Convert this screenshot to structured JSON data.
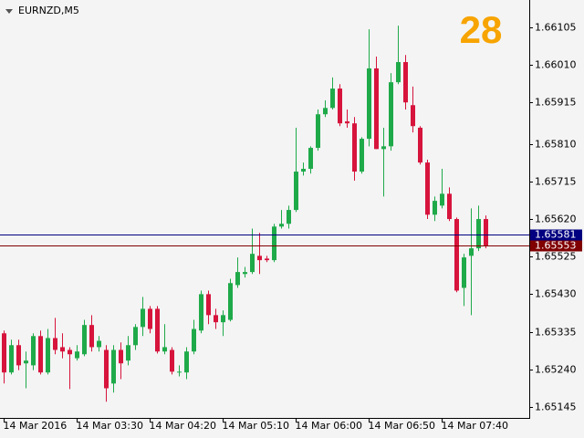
{
  "chart_data": {
    "type": "candlestick",
    "title": "EURNZD,M5",
    "annotation": "28",
    "categories": [
      "14 Mar 2016",
      null,
      null,
      null,
      null,
      null,
      null,
      null,
      null,
      null,
      "14 Mar 03:30",
      null,
      null,
      null,
      null,
      null,
      null,
      null,
      null,
      null,
      "14 Mar 04:20",
      null,
      null,
      null,
      null,
      null,
      null,
      null,
      null,
      null,
      "14 Mar 05:10",
      null,
      null,
      null,
      null,
      null,
      null,
      null,
      null,
      null,
      "14 Mar 06:00",
      null,
      null,
      null,
      null,
      null,
      null,
      null,
      null,
      null,
      "14 Mar 06:50",
      null,
      null,
      null,
      null,
      null,
      null,
      null,
      null,
      null,
      "14 Mar 07:40",
      null,
      null,
      null,
      null,
      null,
      null
    ],
    "open": [
      1.65331,
      1.65232,
      1.65301,
      1.65255,
      1.6525,
      1.65324,
      1.65232,
      1.65319,
      1.65296,
      1.65289,
      1.65268,
      1.65278,
      1.65352,
      1.65296,
      1.65289,
      1.65204,
      1.65289,
      1.65262,
      1.65301,
      1.65347,
      1.65393,
      1.65393,
      1.65285,
      1.65289,
      1.65232,
      1.65232,
      1.65285,
      1.65338,
      1.6543,
      1.65377,
      1.65359,
      1.65365,
      1.65453,
      1.65481,
      1.65486,
      1.65527,
      1.6552,
      1.65516,
      1.65601,
      1.65608,
      1.65643,
      1.6574,
      1.65747,
      1.658,
      1.65885,
      1.65901,
      1.6595,
      1.65867,
      1.65862,
      1.6574,
      1.65823,
      1.66001,
      1.65797,
      1.65804,
      1.65966,
      1.66017,
      1.65908,
      1.65851,
      1.65763,
      1.65631,
      1.65654,
      1.65684,
      1.6562,
      1.65446,
      1.65527,
      1.65546,
      1.6562
    ],
    "high": [
      1.65338,
      1.65315,
      1.65315,
      1.65285,
      1.65331,
      1.65338,
      1.65342,
      1.6537,
      1.65331,
      1.65296,
      1.65301,
      1.65365,
      1.65377,
      1.65324,
      1.65301,
      1.65301,
      1.65308,
      1.65324,
      1.65354,
      1.65423,
      1.654,
      1.654,
      1.65354,
      1.65296,
      1.6525,
      1.65296,
      1.65365,
      1.65439,
      1.65439,
      1.65393,
      1.65389,
      1.65469,
      1.65523,
      1.65499,
      1.65596,
      1.65585,
      1.65527,
      1.65608,
      1.65643,
      1.65654,
      1.65851,
      1.65763,
      1.65804,
      1.65897,
      1.6592,
      1.65978,
      1.65961,
      1.65897,
      1.65878,
      1.65827,
      1.661,
      1.66031,
      1.65851,
      1.65989,
      1.66109,
      1.66035,
      1.65955,
      1.65855,
      1.6577,
      1.65677,
      1.65747,
      1.657,
      1.65624,
      1.65532,
      1.65647,
      1.65654,
      1.65629
    ],
    "low": [
      1.65204,
      1.65227,
      1.65238,
      1.65192,
      1.65238,
      1.65227,
      1.65227,
      1.65278,
      1.65268,
      1.6519,
      1.65262,
      1.65273,
      1.65285,
      1.65285,
      1.65158,
      1.65181,
      1.65215,
      1.6525,
      1.65289,
      1.65324,
      1.65331,
      1.6528,
      1.65278,
      1.65227,
      1.65222,
      1.65215,
      1.65278,
      1.65331,
      1.65354,
      1.65342,
      1.65324,
      1.65361,
      1.65446,
      1.65472,
      1.65481,
      1.65481,
      1.65511,
      1.65511,
      1.65596,
      1.65596,
      1.65638,
      1.6573,
      1.65735,
      1.65793,
      1.65878,
      1.65897,
      1.65855,
      1.65851,
      1.65717,
      1.65735,
      1.65804,
      1.65797,
      1.65677,
      1.65793,
      1.65961,
      1.65897,
      1.65839,
      1.65758,
      1.6562,
      1.65615,
      1.65647,
      1.65615,
      1.65435,
      1.654,
      1.65377,
      1.65539,
      1.65546
    ],
    "close": [
      1.65232,
      1.65301,
      1.6525,
      1.65262,
      1.65324,
      1.65232,
      1.65319,
      1.65289,
      1.65285,
      1.65278,
      1.65285,
      1.65352,
      1.65296,
      1.65312,
      1.65192,
      1.65289,
      1.65255,
      1.65301,
      1.65347,
      1.65393,
      1.65342,
      1.65285,
      1.65296,
      1.65234,
      1.65234,
      1.65285,
      1.65342,
      1.6543,
      1.65377,
      1.65359,
      1.65377,
      1.65458,
      1.65486,
      1.65486,
      1.65532,
      1.65516,
      1.65516,
      1.65601,
      1.65608,
      1.65643,
      1.6574,
      1.65747,
      1.658,
      1.65885,
      1.65901,
      1.6595,
      1.65862,
      1.65862,
      1.6574,
      1.65823,
      1.66001,
      1.65797,
      1.65804,
      1.65966,
      1.66017,
      1.65915,
      1.65855,
      1.65763,
      1.65631,
      1.65666,
      1.65684,
      1.6562,
      1.65439,
      1.65523,
      1.65546,
      1.6562,
      1.65553
    ],
    "up_color": "#1faa4a",
    "down_color": "#d6143c",
    "price_lines": [
      {
        "value": 1.65581,
        "color": "#000080"
      },
      {
        "value": 1.65553,
        "color": "#800000"
      }
    ],
    "ylim": [
      1.65117,
      1.66174
    ],
    "yticks": [
      1.66105,
      {
        "value": 1.6601,
        "label": "1.66010"
      },
      1.65915,
      {
        "value": 1.6581,
        "label": "1.65810"
      },
      1.65715,
      {
        "value": 1.6562,
        "label": "1.65620"
      },
      1.65525,
      {
        "value": 1.6543,
        "label": "1.65430"
      },
      1.65335,
      {
        "value": 1.6524,
        "label": "1.65240"
      },
      1.65145
    ]
  }
}
